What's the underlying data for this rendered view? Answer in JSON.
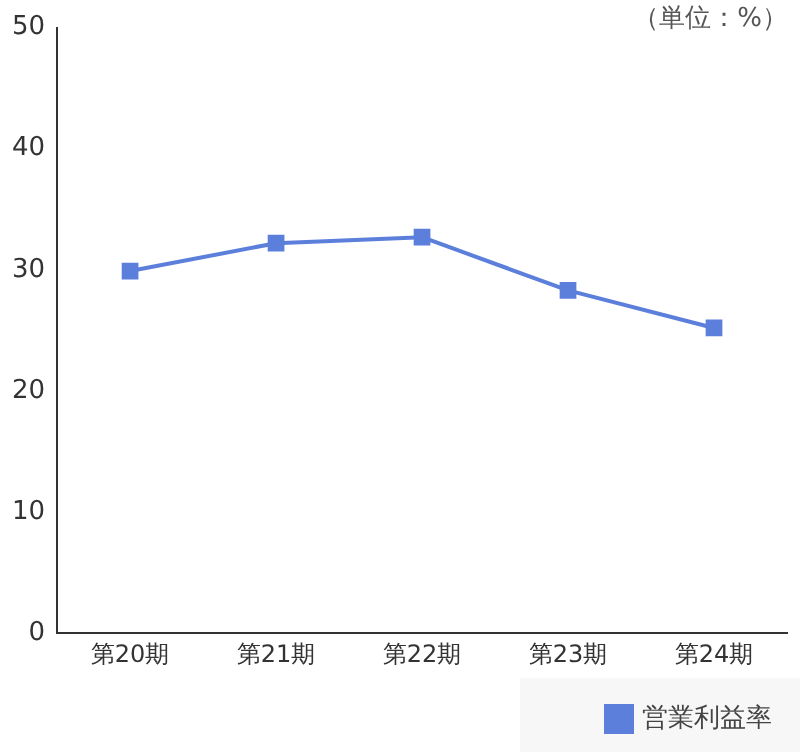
{
  "chart_data": {
    "type": "line",
    "categories": [
      "第20期",
      "第21期",
      "第22期",
      "第23期",
      "第24期"
    ],
    "series": [
      {
        "name": "営業利益率",
        "color": "#5b7fdb",
        "values": [
          29.9,
          32.2,
          32.7,
          28.3,
          25.2
        ]
      }
    ],
    "ylim": [
      0,
      50
    ],
    "yticks": [
      0,
      10,
      20,
      30,
      40,
      50
    ],
    "grid": false,
    "legend": "bottom right",
    "marker": "square",
    "line_style": "solid",
    "annotations": [
      "（単位：%）"
    ]
  }
}
